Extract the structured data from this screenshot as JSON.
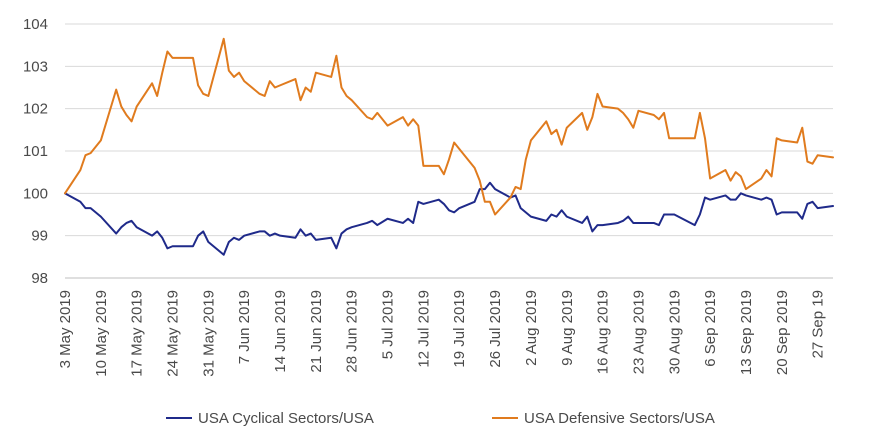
{
  "chart_data": {
    "type": "line",
    "title": "",
    "xlabel": "",
    "ylabel": "",
    "ylim": [
      98,
      104
    ],
    "yticks": [
      98,
      99,
      100,
      101,
      102,
      103,
      104
    ],
    "xlim": [
      "2019-05-03",
      "2019-09-30"
    ],
    "grid": "horizontal",
    "legend_position": "bottom",
    "x_tick_labels": [
      {
        "date": "2019-05-03",
        "label": "3 May 2019"
      },
      {
        "date": "2019-05-10",
        "label": "10 May 2019"
      },
      {
        "date": "2019-05-17",
        "label": "17 May 2019"
      },
      {
        "date": "2019-05-24",
        "label": "24 May 2019"
      },
      {
        "date": "2019-05-31",
        "label": "31 May 2019"
      },
      {
        "date": "2019-06-07",
        "label": "7 Jun 2019"
      },
      {
        "date": "2019-06-14",
        "label": "14 Jun 2019"
      },
      {
        "date": "2019-06-21",
        "label": "21 Jun 2019"
      },
      {
        "date": "2019-06-28",
        "label": "28 Jun 2019"
      },
      {
        "date": "2019-07-05",
        "label": "5 Jul 2019"
      },
      {
        "date": "2019-07-12",
        "label": "12 Jul 2019"
      },
      {
        "date": "2019-07-19",
        "label": "19 Jul 2019"
      },
      {
        "date": "2019-07-26",
        "label": "26 Jul 2019"
      },
      {
        "date": "2019-08-02",
        "label": "2 Aug 2019"
      },
      {
        "date": "2019-08-09",
        "label": "9 Aug 2019"
      },
      {
        "date": "2019-08-16",
        "label": "16 Aug 2019"
      },
      {
        "date": "2019-08-23",
        "label": "23 Aug 2019"
      },
      {
        "date": "2019-08-30",
        "label": "30 Aug 2019"
      },
      {
        "date": "2019-09-06",
        "label": "6 Sep 2019"
      },
      {
        "date": "2019-09-13",
        "label": "13 Sep 2019"
      },
      {
        "date": "2019-09-20",
        "label": "20 Sep 2019"
      },
      {
        "date": "2019-09-27",
        "label": "27 Sep 19"
      }
    ],
    "series": [
      {
        "name": "USA Cyclical Sectors/USA",
        "color": "#1f2a8a",
        "points": [
          [
            "2019-05-03",
            100.0
          ],
          [
            "2019-05-06",
            99.8
          ],
          [
            "2019-05-07",
            99.65
          ],
          [
            "2019-05-08",
            99.65
          ],
          [
            "2019-05-09",
            99.55
          ],
          [
            "2019-05-10",
            99.45
          ],
          [
            "2019-05-13",
            99.05
          ],
          [
            "2019-05-14",
            99.2
          ],
          [
            "2019-05-15",
            99.3
          ],
          [
            "2019-05-16",
            99.35
          ],
          [
            "2019-05-17",
            99.2
          ],
          [
            "2019-05-20",
            99.0
          ],
          [
            "2019-05-21",
            99.1
          ],
          [
            "2019-05-22",
            98.95
          ],
          [
            "2019-05-23",
            98.7
          ],
          [
            "2019-05-24",
            98.75
          ],
          [
            "2019-05-28",
            98.75
          ],
          [
            "2019-05-29",
            99.0
          ],
          [
            "2019-05-30",
            99.1
          ],
          [
            "2019-05-31",
            98.85
          ],
          [
            "2019-06-03",
            98.55
          ],
          [
            "2019-06-04",
            98.85
          ],
          [
            "2019-06-05",
            98.95
          ],
          [
            "2019-06-06",
            98.9
          ],
          [
            "2019-06-07",
            99.0
          ],
          [
            "2019-06-10",
            99.1
          ],
          [
            "2019-06-11",
            99.1
          ],
          [
            "2019-06-12",
            99.0
          ],
          [
            "2019-06-13",
            99.05
          ],
          [
            "2019-06-14",
            99.0
          ],
          [
            "2019-06-17",
            98.95
          ],
          [
            "2019-06-18",
            99.15
          ],
          [
            "2019-06-19",
            99.0
          ],
          [
            "2019-06-20",
            99.05
          ],
          [
            "2019-06-21",
            98.9
          ],
          [
            "2019-06-24",
            98.95
          ],
          [
            "2019-06-25",
            98.7
          ],
          [
            "2019-06-26",
            99.05
          ],
          [
            "2019-06-27",
            99.15
          ],
          [
            "2019-06-28",
            99.2
          ],
          [
            "2019-07-01",
            99.3
          ],
          [
            "2019-07-02",
            99.35
          ],
          [
            "2019-07-03",
            99.25
          ],
          [
            "2019-07-05",
            99.4
          ],
          [
            "2019-07-08",
            99.3
          ],
          [
            "2019-07-09",
            99.4
          ],
          [
            "2019-07-10",
            99.3
          ],
          [
            "2019-07-11",
            99.8
          ],
          [
            "2019-07-12",
            99.75
          ],
          [
            "2019-07-15",
            99.85
          ],
          [
            "2019-07-16",
            99.75
          ],
          [
            "2019-07-17",
            99.6
          ],
          [
            "2019-07-18",
            99.55
          ],
          [
            "2019-07-19",
            99.65
          ],
          [
            "2019-07-22",
            99.8
          ],
          [
            "2019-07-23",
            100.1
          ],
          [
            "2019-07-24",
            100.1
          ],
          [
            "2019-07-25",
            100.25
          ],
          [
            "2019-07-26",
            100.1
          ],
          [
            "2019-07-29",
            99.9
          ],
          [
            "2019-07-30",
            99.95
          ],
          [
            "2019-07-31",
            99.65
          ],
          [
            "2019-08-01",
            99.55
          ],
          [
            "2019-08-02",
            99.45
          ],
          [
            "2019-08-05",
            99.35
          ],
          [
            "2019-08-06",
            99.5
          ],
          [
            "2019-08-07",
            99.45
          ],
          [
            "2019-08-08",
            99.6
          ],
          [
            "2019-08-09",
            99.45
          ],
          [
            "2019-08-12",
            99.3
          ],
          [
            "2019-08-13",
            99.45
          ],
          [
            "2019-08-14",
            99.1
          ],
          [
            "2019-08-15",
            99.25
          ],
          [
            "2019-08-16",
            99.25
          ],
          [
            "2019-08-19",
            99.3
          ],
          [
            "2019-08-20",
            99.35
          ],
          [
            "2019-08-21",
            99.45
          ],
          [
            "2019-08-22",
            99.3
          ],
          [
            "2019-08-23",
            99.3
          ],
          [
            "2019-08-26",
            99.3
          ],
          [
            "2019-08-27",
            99.25
          ],
          [
            "2019-08-28",
            99.5
          ],
          [
            "2019-08-29",
            99.5
          ],
          [
            "2019-08-30",
            99.5
          ],
          [
            "2019-09-03",
            99.25
          ],
          [
            "2019-09-04",
            99.5
          ],
          [
            "2019-09-05",
            99.9
          ],
          [
            "2019-09-06",
            99.85
          ],
          [
            "2019-09-09",
            99.95
          ],
          [
            "2019-09-10",
            99.85
          ],
          [
            "2019-09-11",
            99.85
          ],
          [
            "2019-09-12",
            100.0
          ],
          [
            "2019-09-13",
            99.95
          ],
          [
            "2019-09-16",
            99.85
          ],
          [
            "2019-09-17",
            99.9
          ],
          [
            "2019-09-18",
            99.85
          ],
          [
            "2019-09-19",
            99.5
          ],
          [
            "2019-09-20",
            99.55
          ],
          [
            "2019-09-23",
            99.55
          ],
          [
            "2019-09-24",
            99.4
          ],
          [
            "2019-09-25",
            99.75
          ],
          [
            "2019-09-26",
            99.8
          ],
          [
            "2019-09-27",
            99.65
          ],
          [
            "2019-09-30",
            99.7
          ]
        ]
      },
      {
        "name": "USA Defensive Sectors/USA",
        "color": "#e07b1e",
        "points": [
          [
            "2019-05-03",
            100.0
          ],
          [
            "2019-05-06",
            100.55
          ],
          [
            "2019-05-07",
            100.9
          ],
          [
            "2019-05-08",
            100.95
          ],
          [
            "2019-05-09",
            101.1
          ],
          [
            "2019-05-10",
            101.25
          ],
          [
            "2019-05-13",
            102.45
          ],
          [
            "2019-05-14",
            102.05
          ],
          [
            "2019-05-15",
            101.85
          ],
          [
            "2019-05-16",
            101.7
          ],
          [
            "2019-05-17",
            102.05
          ],
          [
            "2019-05-20",
            102.6
          ],
          [
            "2019-05-21",
            102.3
          ],
          [
            "2019-05-22",
            102.85
          ],
          [
            "2019-05-23",
            103.35
          ],
          [
            "2019-05-24",
            103.2
          ],
          [
            "2019-05-28",
            103.2
          ],
          [
            "2019-05-29",
            102.55
          ],
          [
            "2019-05-30",
            102.35
          ],
          [
            "2019-05-31",
            102.3
          ],
          [
            "2019-06-03",
            103.65
          ],
          [
            "2019-06-04",
            102.9
          ],
          [
            "2019-06-05",
            102.75
          ],
          [
            "2019-06-06",
            102.85
          ],
          [
            "2019-06-07",
            102.65
          ],
          [
            "2019-06-10",
            102.35
          ],
          [
            "2019-06-11",
            102.3
          ],
          [
            "2019-06-12",
            102.65
          ],
          [
            "2019-06-13",
            102.5
          ],
          [
            "2019-06-14",
            102.55
          ],
          [
            "2019-06-17",
            102.7
          ],
          [
            "2019-06-18",
            102.2
          ],
          [
            "2019-06-19",
            102.5
          ],
          [
            "2019-06-20",
            102.4
          ],
          [
            "2019-06-21",
            102.85
          ],
          [
            "2019-06-24",
            102.75
          ],
          [
            "2019-06-25",
            103.25
          ],
          [
            "2019-06-26",
            102.5
          ],
          [
            "2019-06-27",
            102.3
          ],
          [
            "2019-06-28",
            102.2
          ],
          [
            "2019-07-01",
            101.8
          ],
          [
            "2019-07-02",
            101.75
          ],
          [
            "2019-07-03",
            101.9
          ],
          [
            "2019-07-05",
            101.6
          ],
          [
            "2019-07-08",
            101.8
          ],
          [
            "2019-07-09",
            101.6
          ],
          [
            "2019-07-10",
            101.75
          ],
          [
            "2019-07-11",
            101.6
          ],
          [
            "2019-07-12",
            100.65
          ],
          [
            "2019-07-15",
            100.65
          ],
          [
            "2019-07-16",
            100.45
          ],
          [
            "2019-07-17",
            100.8
          ],
          [
            "2019-07-18",
            101.2
          ],
          [
            "2019-07-19",
            101.05
          ],
          [
            "2019-07-22",
            100.6
          ],
          [
            "2019-07-23",
            100.3
          ],
          [
            "2019-07-24",
            99.8
          ],
          [
            "2019-07-25",
            99.8
          ],
          [
            "2019-07-26",
            99.5
          ],
          [
            "2019-07-29",
            99.9
          ],
          [
            "2019-07-30",
            100.15
          ],
          [
            "2019-07-31",
            100.1
          ],
          [
            "2019-08-01",
            100.8
          ],
          [
            "2019-08-02",
            101.25
          ],
          [
            "2019-08-05",
            101.7
          ],
          [
            "2019-08-06",
            101.4
          ],
          [
            "2019-08-07",
            101.5
          ],
          [
            "2019-08-08",
            101.15
          ],
          [
            "2019-08-09",
            101.55
          ],
          [
            "2019-08-12",
            101.9
          ],
          [
            "2019-08-13",
            101.5
          ],
          [
            "2019-08-14",
            101.8
          ],
          [
            "2019-08-15",
            102.35
          ],
          [
            "2019-08-16",
            102.05
          ],
          [
            "2019-08-19",
            102.0
          ],
          [
            "2019-08-20",
            101.9
          ],
          [
            "2019-08-21",
            101.75
          ],
          [
            "2019-08-22",
            101.55
          ],
          [
            "2019-08-23",
            101.95
          ],
          [
            "2019-08-26",
            101.85
          ],
          [
            "2019-08-27",
            101.75
          ],
          [
            "2019-08-28",
            101.9
          ],
          [
            "2019-08-29",
            101.3
          ],
          [
            "2019-08-30",
            101.3
          ],
          [
            "2019-09-03",
            101.3
          ],
          [
            "2019-09-04",
            101.9
          ],
          [
            "2019-09-05",
            101.3
          ],
          [
            "2019-09-06",
            100.35
          ],
          [
            "2019-09-09",
            100.55
          ],
          [
            "2019-09-10",
            100.3
          ],
          [
            "2019-09-11",
            100.5
          ],
          [
            "2019-09-12",
            100.4
          ],
          [
            "2019-09-13",
            100.1
          ],
          [
            "2019-09-16",
            100.35
          ],
          [
            "2019-09-17",
            100.55
          ],
          [
            "2019-09-18",
            100.4
          ],
          [
            "2019-09-19",
            101.3
          ],
          [
            "2019-09-20",
            101.25
          ],
          [
            "2019-09-23",
            101.2
          ],
          [
            "2019-09-24",
            101.55
          ],
          [
            "2019-09-25",
            100.75
          ],
          [
            "2019-09-26",
            100.7
          ],
          [
            "2019-09-27",
            100.9
          ],
          [
            "2019-09-30",
            100.85
          ]
        ]
      }
    ]
  }
}
